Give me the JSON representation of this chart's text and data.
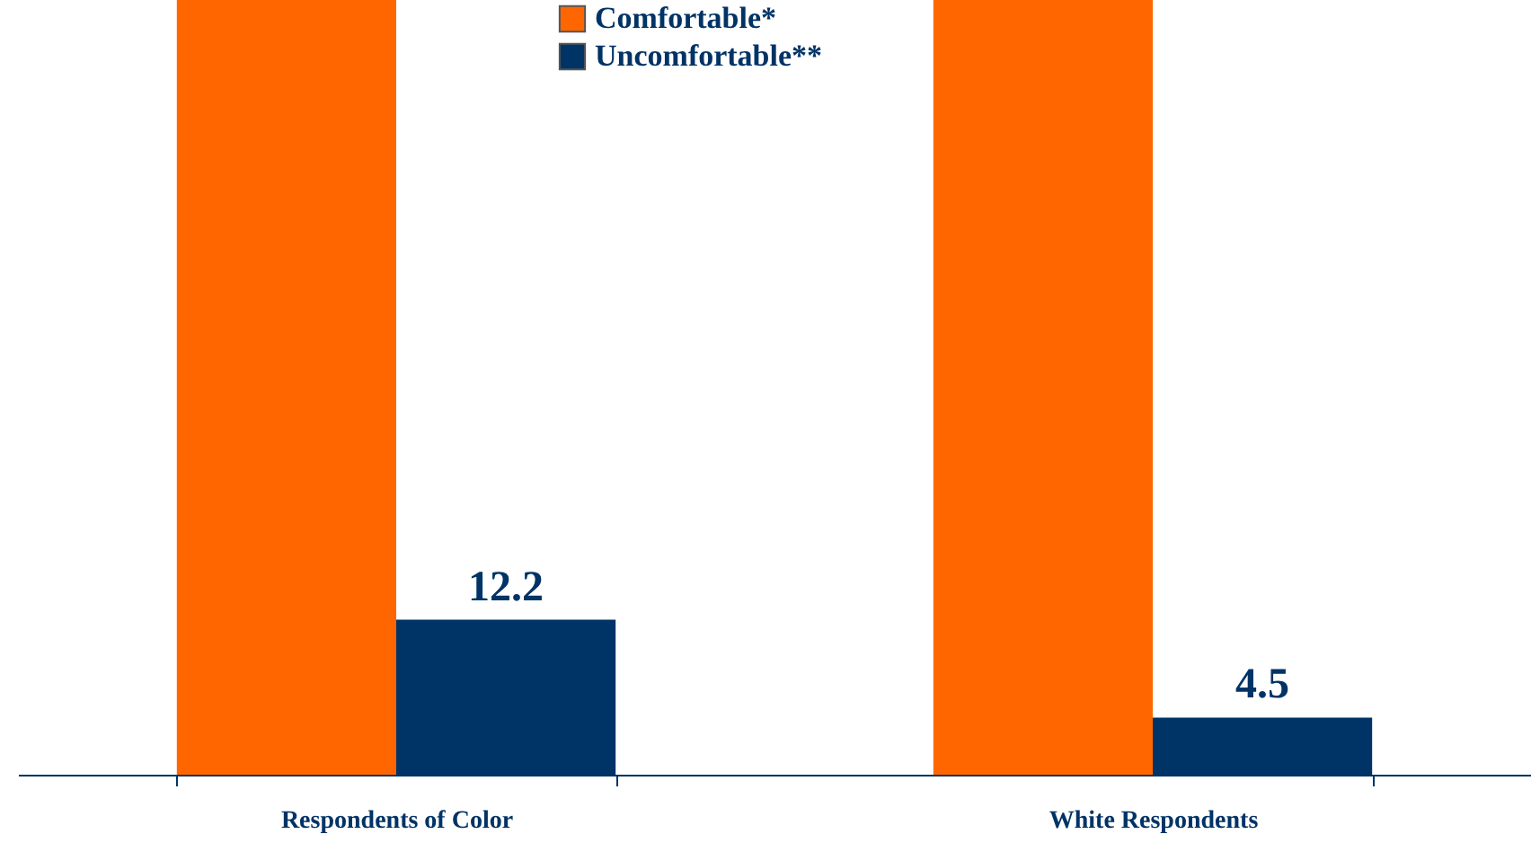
{
  "chart_data": {
    "type": "bar",
    "categories": [
      "Respondents of Color",
      "White Respondents"
    ],
    "series": [
      {
        "name": "Comfortable*",
        "color": "#ff6600",
        "values": [
          61,
          61
        ]
      },
      {
        "name": "Uncomfortable**",
        "color": "#003366",
        "values": [
          12.2,
          4.5
        ],
        "value_labels": [
          "12.2",
          "4.5"
        ]
      }
    ],
    "ylim": [
      0,
      61
    ],
    "grid": false,
    "legend": "top",
    "tick_labels": "x"
  }
}
